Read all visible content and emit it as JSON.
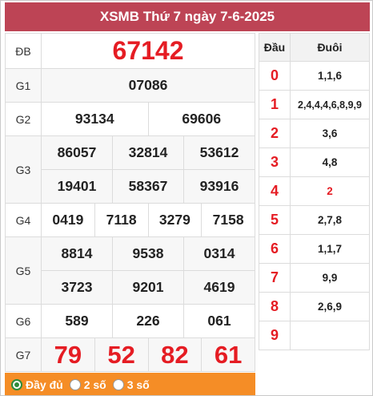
{
  "header": {
    "title": "XSMB Thứ 7 ngày 7-6-2025"
  },
  "results": {
    "db": {
      "label": "ĐB",
      "numbers": [
        "67142"
      ]
    },
    "g1": {
      "label": "G1",
      "numbers": [
        "07086"
      ]
    },
    "g2": {
      "label": "G2",
      "numbers": [
        "93134",
        "69606"
      ]
    },
    "g3": {
      "label": "G3",
      "numbers": [
        "86057",
        "32814",
        "53612",
        "19401",
        "58367",
        "93916"
      ]
    },
    "g4": {
      "label": "G4",
      "numbers": [
        "0419",
        "7118",
        "3279",
        "7158"
      ]
    },
    "g5": {
      "label": "G5",
      "numbers": [
        "8814",
        "9538",
        "0314",
        "3723",
        "9201",
        "4619"
      ]
    },
    "g6": {
      "label": "G6",
      "numbers": [
        "589",
        "226",
        "061"
      ]
    },
    "g7": {
      "label": "G7",
      "numbers": [
        "79",
        "52",
        "82",
        "61"
      ]
    }
  },
  "loto": {
    "head_label": "Đầu",
    "tail_label": "Đuôi",
    "rows": [
      {
        "head": "0",
        "tail": "1,1,6"
      },
      {
        "head": "1",
        "tail": "2,4,4,4,6,8,9,9"
      },
      {
        "head": "2",
        "tail": "3,6"
      },
      {
        "head": "3",
        "tail": "4,8"
      },
      {
        "head": "4",
        "tail": "2"
      },
      {
        "head": "5",
        "tail": "2,7,8"
      },
      {
        "head": "6",
        "tail": "1,1,7"
      },
      {
        "head": "7",
        "tail": "9,9"
      },
      {
        "head": "8",
        "tail": "2,6,9"
      },
      {
        "head": "9",
        "tail": ""
      }
    ]
  },
  "filter": {
    "options": [
      "Đầy đủ",
      "2 số",
      "3 số"
    ],
    "selected": "Đầy đủ"
  },
  "colors": {
    "header_bg": "#bd4455",
    "accent_red": "#e51c23",
    "filter_bg": "#f58d26"
  }
}
